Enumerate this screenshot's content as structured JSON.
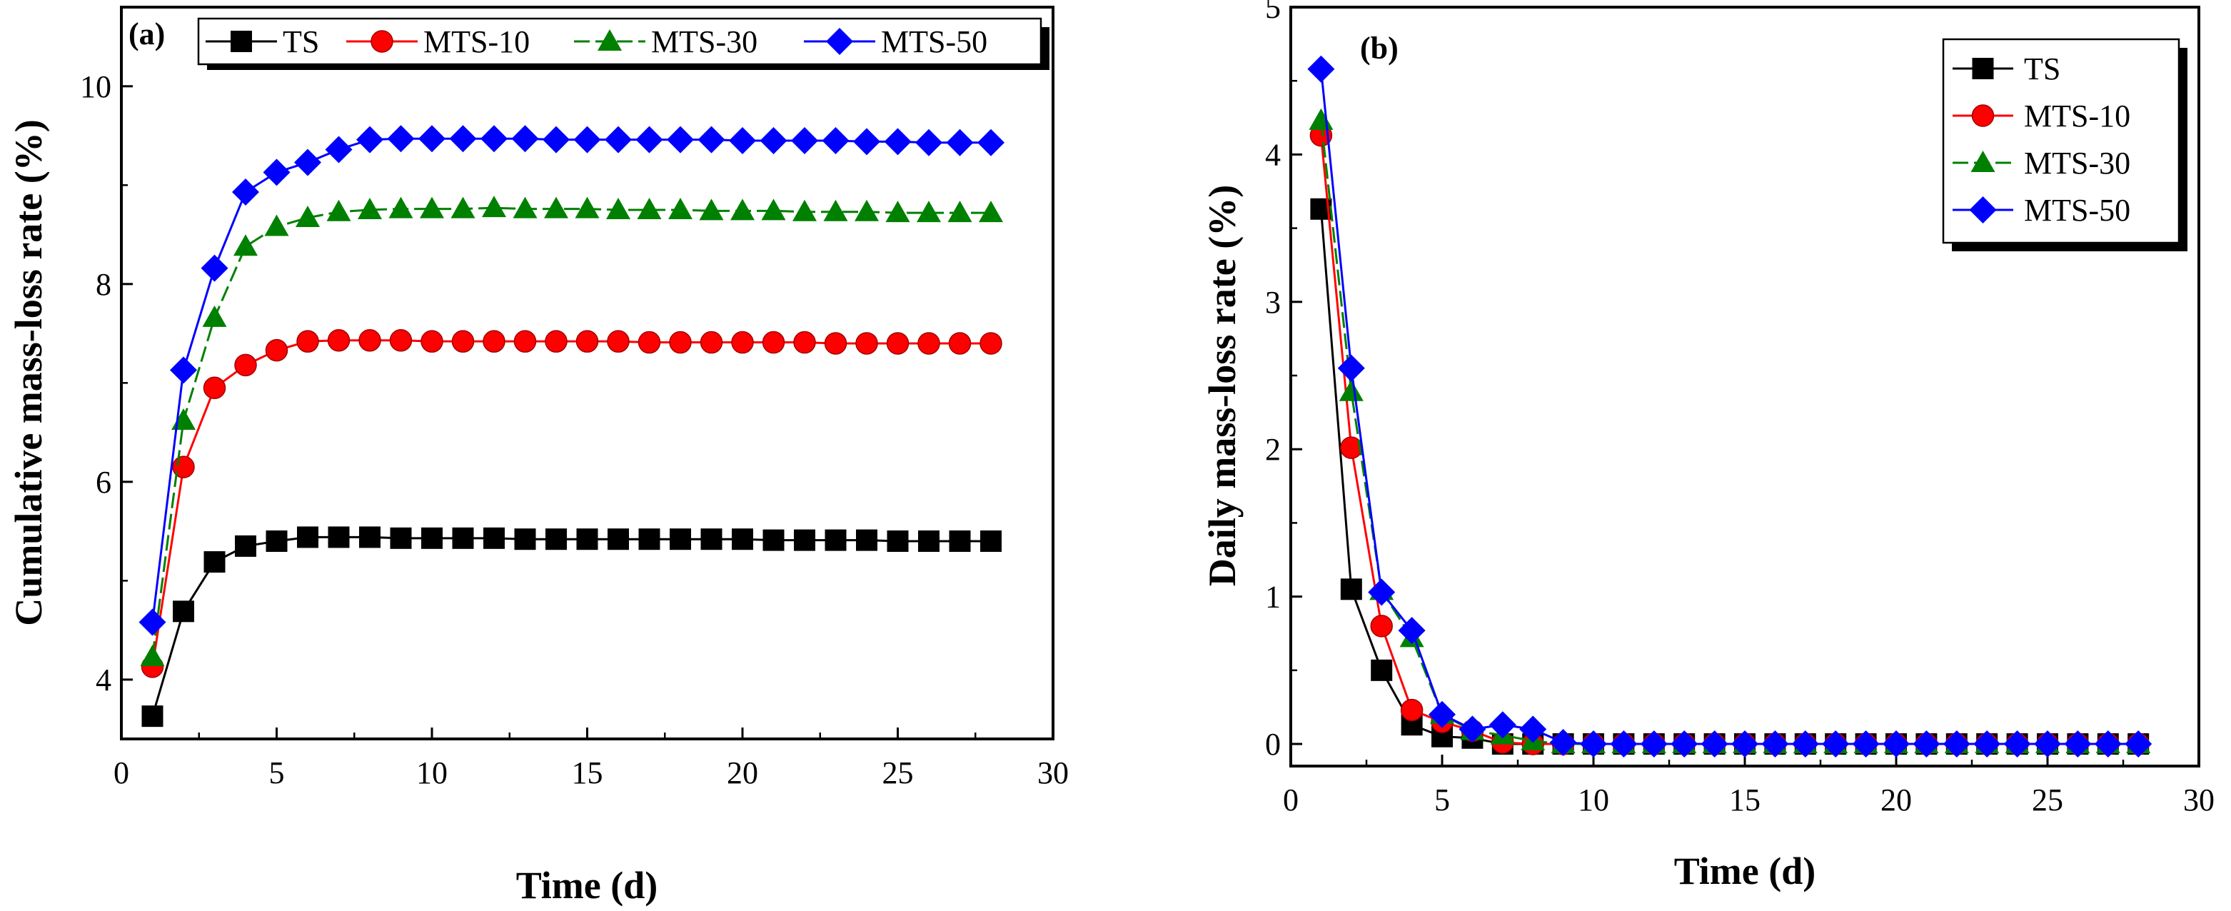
{
  "colors": {
    "TS": "#000000",
    "MTS-10": "#ff0000",
    "MTS-30": "#008000",
    "MTS-50": "#0000ff"
  },
  "chart_data": [
    {
      "type": "line",
      "panel_label": "(a)",
      "xlabel": "Time (d)",
      "ylabel": "Cumulative mass-loss rate (%)",
      "xlim": [
        0,
        30
      ],
      "ylim": [
        3.4,
        10.8
      ],
      "xticks": [
        0,
        5,
        10,
        15,
        20,
        25,
        30
      ],
      "yticks": [
        4,
        6,
        8,
        10
      ],
      "legend_position": "top",
      "x": [
        1,
        2,
        3,
        4,
        5,
        6,
        7,
        8,
        9,
        10,
        11,
        12,
        13,
        14,
        15,
        16,
        17,
        18,
        19,
        20,
        21,
        22,
        23,
        24,
        25,
        26,
        27,
        28
      ],
      "series": [
        {
          "name": "TS",
          "marker": "square",
          "values": [
            3.63,
            4.69,
            5.19,
            5.35,
            5.4,
            5.44,
            5.44,
            5.44,
            5.43,
            5.43,
            5.43,
            5.43,
            5.42,
            5.42,
            5.42,
            5.42,
            5.42,
            5.42,
            5.42,
            5.42,
            5.41,
            5.41,
            5.41,
            5.41,
            5.4,
            5.4,
            5.4,
            5.4
          ]
        },
        {
          "name": "MTS-10",
          "marker": "circle",
          "values": [
            4.13,
            6.15,
            6.95,
            7.18,
            7.33,
            7.42,
            7.43,
            7.43,
            7.43,
            7.42,
            7.42,
            7.42,
            7.42,
            7.42,
            7.42,
            7.42,
            7.41,
            7.41,
            7.41,
            7.41,
            7.41,
            7.41,
            7.4,
            7.4,
            7.4,
            7.4,
            7.4,
            7.4
          ]
        },
        {
          "name": "MTS-30",
          "marker": "triangle",
          "values": [
            4.23,
            6.62,
            7.66,
            8.38,
            8.58,
            8.67,
            8.73,
            8.75,
            8.76,
            8.76,
            8.76,
            8.77,
            8.76,
            8.76,
            8.76,
            8.75,
            8.75,
            8.75,
            8.74,
            8.74,
            8.74,
            8.73,
            8.73,
            8.73,
            8.72,
            8.72,
            8.72,
            8.72
          ]
        },
        {
          "name": "MTS-50",
          "marker": "diamond",
          "values": [
            4.58,
            7.13,
            8.16,
            8.93,
            9.13,
            9.23,
            9.36,
            9.46,
            9.47,
            9.47,
            9.47,
            9.47,
            9.47,
            9.46,
            9.46,
            9.46,
            9.46,
            9.46,
            9.46,
            9.45,
            9.45,
            9.45,
            9.45,
            9.44,
            9.44,
            9.43,
            9.43,
            9.43
          ]
        }
      ]
    },
    {
      "type": "line",
      "panel_label": "(b)",
      "xlabel": "Time (d)",
      "ylabel": "Daily mass-loss rate (%)",
      "xlim": [
        0,
        30
      ],
      "ylim": [
        -0.15,
        5
      ],
      "xticks": [
        0,
        5,
        10,
        15,
        20,
        25,
        30
      ],
      "yticks": [
        0,
        1,
        2,
        3,
        4,
        5
      ],
      "legend_position": "top-right",
      "x": [
        1,
        2,
        3,
        4,
        5,
        6,
        7,
        8,
        9,
        10,
        11,
        12,
        13,
        14,
        15,
        16,
        17,
        18,
        19,
        20,
        21,
        22,
        23,
        24,
        25,
        26,
        27,
        28
      ],
      "series": [
        {
          "name": "TS",
          "marker": "square",
          "values": [
            3.63,
            1.05,
            0.5,
            0.13,
            0.05,
            0.04,
            0.0,
            0.0,
            0.0,
            0.0,
            0.0,
            0.0,
            0.0,
            0.0,
            0.0,
            0.0,
            0.0,
            0.0,
            0.0,
            0.0,
            0.0,
            0.0,
            0.0,
            0.0,
            0.0,
            0.0,
            0.0,
            0.0
          ]
        },
        {
          "name": "MTS-10",
          "marker": "circle",
          "values": [
            4.13,
            2.01,
            0.8,
            0.23,
            0.15,
            0.09,
            0.01,
            0.0,
            0.0,
            0.0,
            0.0,
            0.0,
            0.0,
            0.0,
            0.0,
            0.0,
            0.0,
            0.0,
            0.0,
            0.0,
            0.0,
            0.0,
            0.0,
            0.0,
            0.0,
            0.0,
            0.0,
            0.0
          ]
        },
        {
          "name": "MTS-30",
          "marker": "triangle",
          "values": [
            4.23,
            2.39,
            1.04,
            0.72,
            0.2,
            0.09,
            0.06,
            0.02,
            0.0,
            0.0,
            0.0,
            0.0,
            0.0,
            0.0,
            0.0,
            0.0,
            0.0,
            0.0,
            0.0,
            0.0,
            0.0,
            0.0,
            0.0,
            0.0,
            0.0,
            0.0,
            0.0,
            0.0
          ]
        },
        {
          "name": "MTS-50",
          "marker": "diamond",
          "values": [
            4.58,
            2.55,
            1.03,
            0.77,
            0.2,
            0.1,
            0.13,
            0.1,
            0.01,
            0.0,
            0.0,
            0.0,
            0.0,
            0.0,
            0.0,
            0.0,
            0.0,
            0.0,
            0.0,
            0.0,
            0.0,
            0.0,
            0.0,
            0.0,
            0.0,
            0.0,
            0.0,
            0.0
          ]
        }
      ]
    }
  ]
}
